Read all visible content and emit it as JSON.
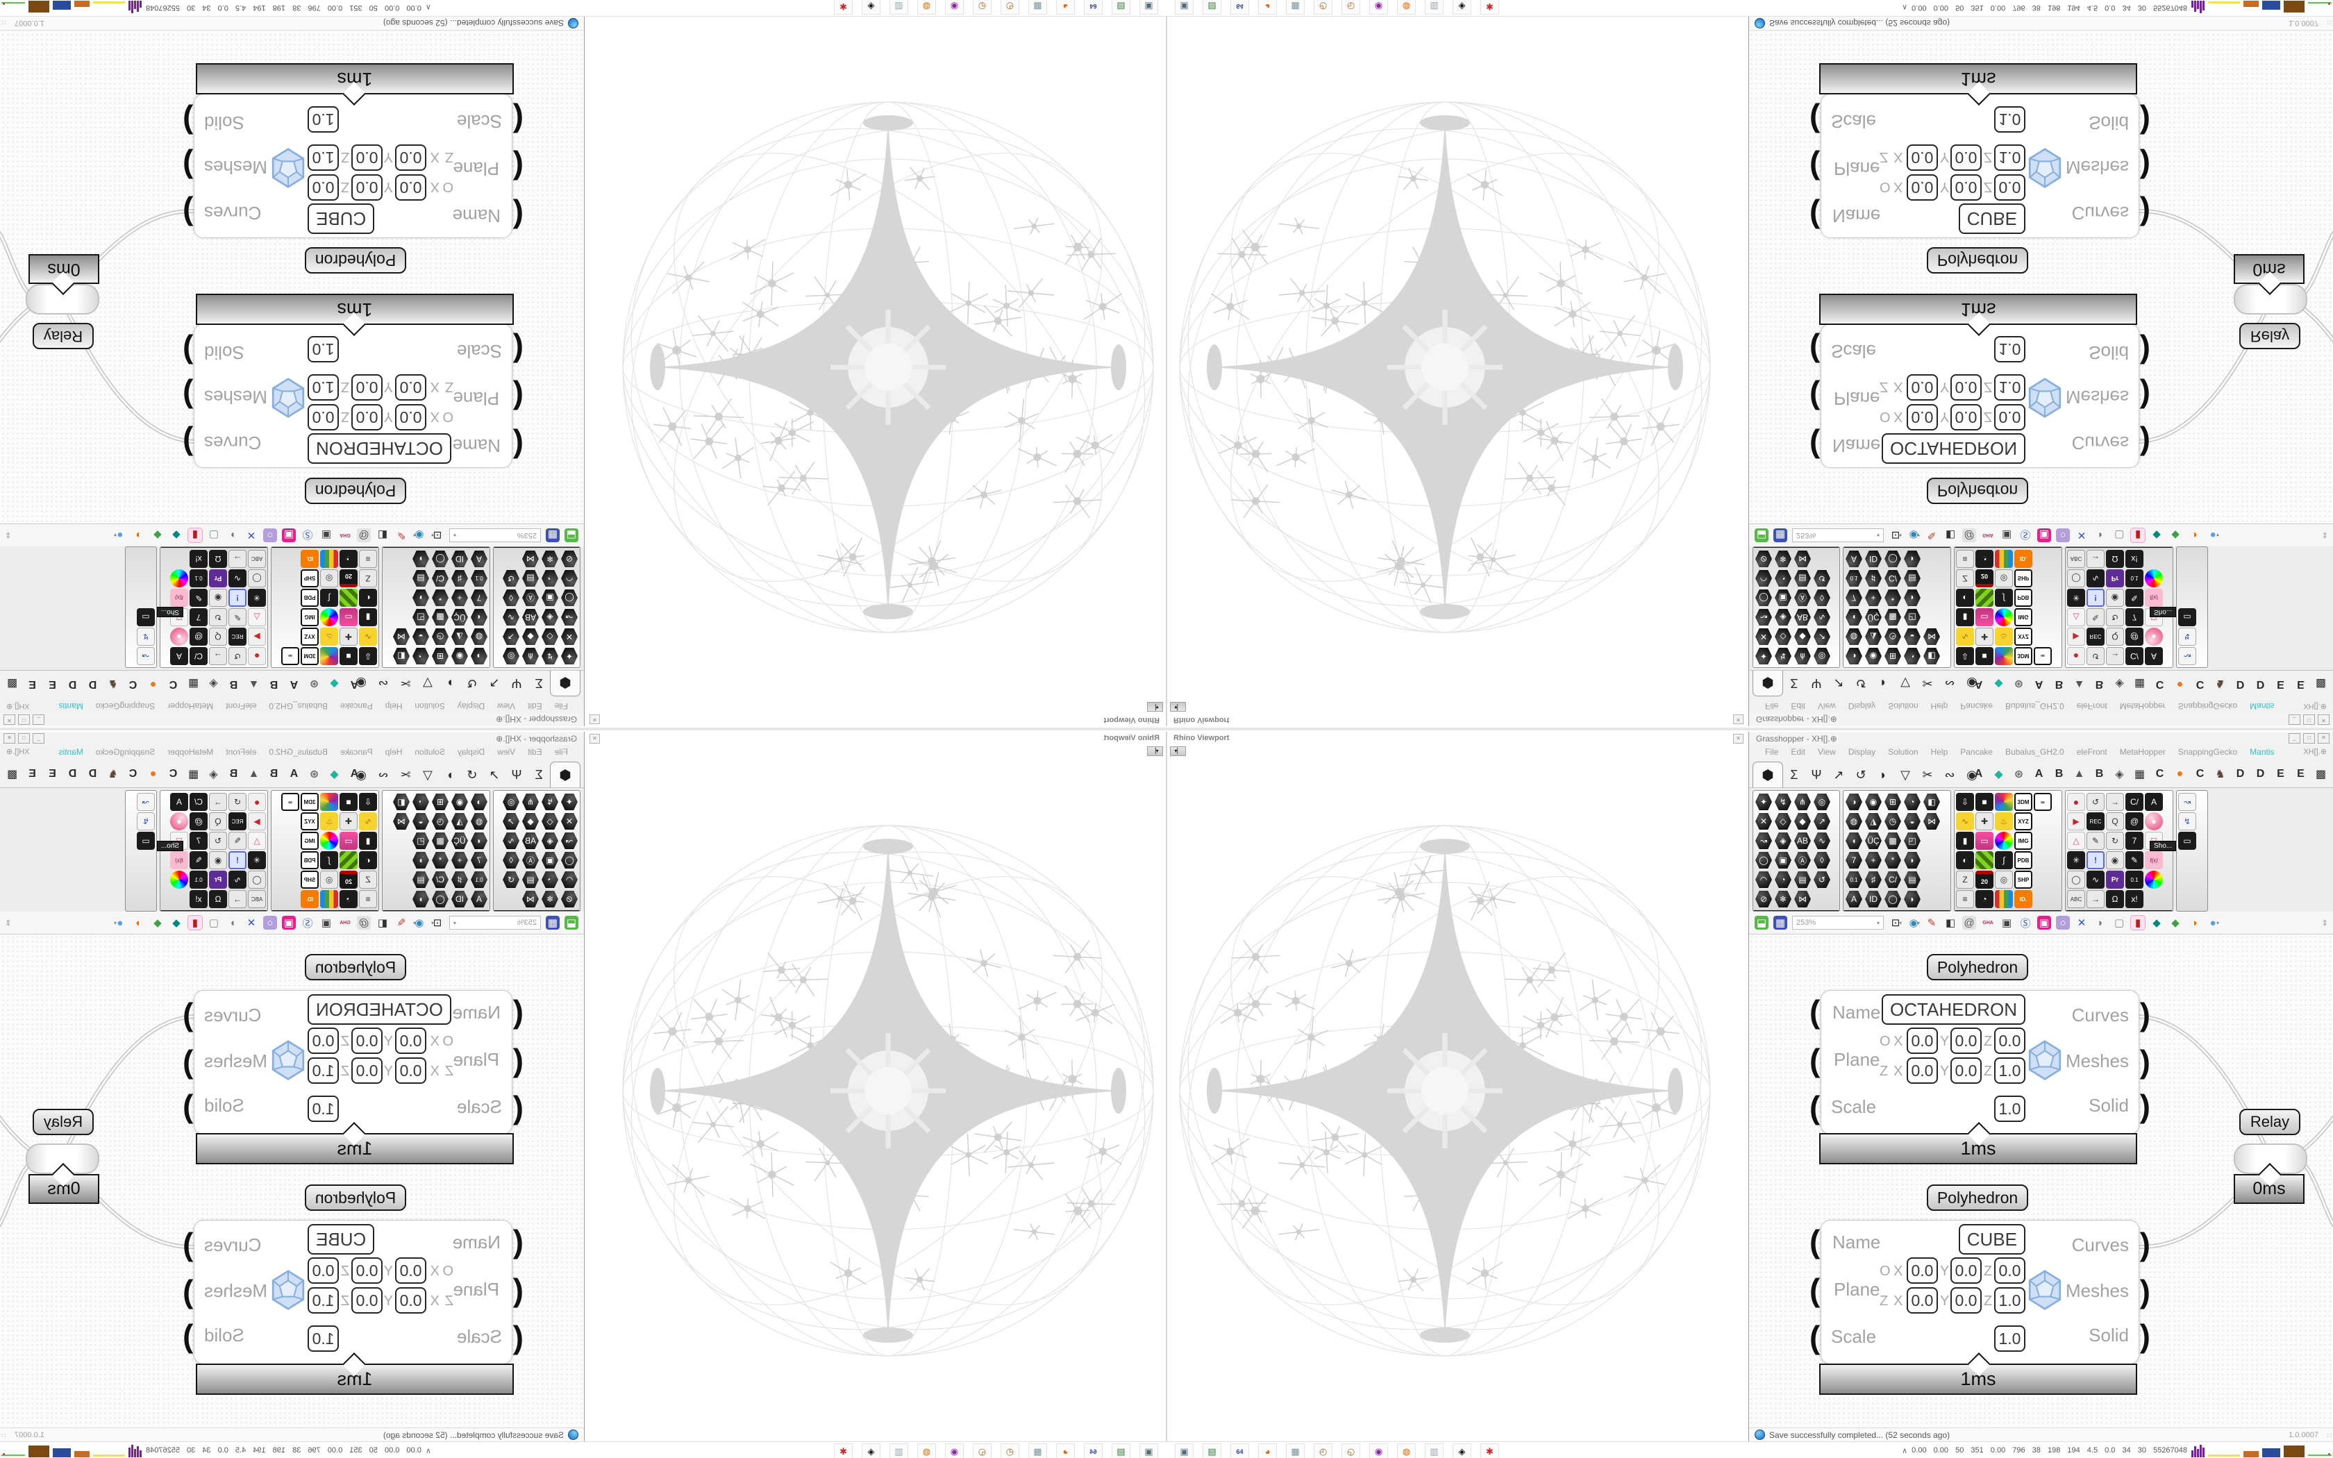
{
  "window": {
    "title": "Grasshopper - XH[].⊕",
    "menu": [
      "File",
      "Edit",
      "View",
      "Display",
      "Solution",
      "Help",
      "Pancake",
      "Bubalus_GH2.0",
      "eleFront",
      "MetaHopper",
      "SnappingGecko",
      "Mantis"
    ],
    "menu_highlight": "Mantis",
    "menu_right": "XH[].⊕",
    "controls": [
      "_",
      "□",
      "✕"
    ]
  },
  "viewport": {
    "label": "Rhino Viewport",
    "close_glyph": "✕",
    "collapse_glyph": "▾▏"
  },
  "tabs": {
    "selected_glyph": "⬢",
    "main": [
      "Σ",
      "Ψ",
      "↗",
      "↺",
      "◗",
      "▽",
      "✂",
      "∾",
      "◉"
    ],
    "plugins": [
      {
        "g": "A"
      },
      {
        "g": "◆",
        "c": "#1db5a0"
      },
      {
        "g": "⊛",
        "c": "#6a6a6a"
      },
      {
        "g": "A"
      },
      {
        "g": "B"
      },
      {
        "g": "▲",
        "c": "#555555"
      },
      {
        "g": "B"
      },
      {
        "g": "◈",
        "c": "#444444"
      },
      {
        "g": "▦"
      },
      {
        "g": "C"
      },
      {
        "g": "●",
        "c": "#e87722"
      },
      {
        "g": "C"
      },
      {
        "g": "♞",
        "c": "#5b4334"
      },
      {
        "g": "D"
      },
      {
        "g": "D"
      },
      {
        "g": "E"
      },
      {
        "g": "E"
      },
      {
        "g": "▩"
      }
    ]
  },
  "palette": {
    "tooltip": "Sho...",
    "footer_plus": "+",
    "groups": [
      {
        "label": "Geometry",
        "width": 124,
        "kind": "hex",
        "icons": [
          [
            "✦",
            "h"
          ],
          [
            "↯",
            "h"
          ],
          [
            "⋔",
            "h"
          ],
          [
            "◎",
            "h"
          ],
          [
            "✕",
            "h"
          ],
          [
            "◇",
            "h"
          ],
          [
            "◆",
            "h"
          ],
          [
            "↗",
            "h"
          ],
          [
            "↝",
            "h"
          ],
          [
            "◈",
            "h"
          ],
          [
            "AB",
            "h"
          ],
          [
            "∿",
            "h"
          ],
          [
            "◯",
            "h"
          ],
          [
            "▣",
            "h"
          ],
          [
            "Ⓐ",
            "h"
          ],
          [
            "◊",
            "h"
          ],
          [
            "◠",
            "h"
          ],
          [
            "◔",
            "h"
          ],
          [
            "▤",
            "h"
          ],
          [
            "↺",
            "h"
          ],
          [
            "⊘",
            "h"
          ],
          [
            "❄",
            "h"
          ],
          [
            "⋈",
            "h"
          ],
          [
            "",
            "x"
          ]
        ]
      },
      {
        "label": "Primitive",
        "width": 154,
        "kind": "hex",
        "icons": [
          [
            "◑",
            "h"
          ],
          [
            "◉",
            "h"
          ],
          [
            "⊞",
            "h"
          ],
          [
            "◔",
            "h"
          ],
          [
            "◧",
            "h"
          ],
          [
            "◍",
            "h"
          ],
          [
            "◮",
            "h"
          ],
          [
            "◷",
            "h"
          ],
          [
            "◒",
            "h"
          ],
          [
            "⋈",
            "h"
          ],
          [
            "◖",
            "h"
          ],
          [
            "ÜÇ",
            "h"
          ],
          [
            "▩",
            "h"
          ],
          [
            "◰",
            "h"
          ],
          [
            "",
            "x"
          ],
          [
            "7",
            "h"
          ],
          [
            "+",
            "h"
          ],
          [
            "*",
            "h"
          ],
          [
            "◗",
            "h"
          ],
          [
            "",
            "x"
          ],
          [
            "0.1",
            "h"
          ],
          [
            "♯",
            "h"
          ],
          [
            "C/",
            "h"
          ],
          [
            "▤",
            "h"
          ],
          [
            "",
            "x"
          ],
          [
            "A",
            "h"
          ],
          [
            "ID",
            "h"
          ],
          [
            "◯",
            "h"
          ],
          [
            "◗",
            "h"
          ],
          [
            "",
            "x"
          ]
        ]
      },
      {
        "label": "Input",
        "width": 154,
        "kind": "sq",
        "icons": [
          [
            "⇩",
            "d"
          ],
          [
            "■",
            "d"
          ],
          [
            "⊕",
            "w2"
          ],
          [
            "3DM",
            "t"
          ],
          [
            "∞",
            "t"
          ],
          [
            "∿",
            "y"
          ],
          [
            "✚",
            "l"
          ],
          [
            "♨",
            "y"
          ],
          [
            "XYZ",
            "t"
          ],
          [
            "",
            "x"
          ],
          [
            "▮",
            "d"
          ],
          [
            "▭",
            "p"
          ],
          [
            "●",
            "w"
          ],
          [
            "IMG",
            "t"
          ],
          [
            "",
            "x"
          ],
          [
            "◐",
            "d"
          ],
          [
            "▦",
            "g"
          ],
          [
            "∫",
            "d"
          ],
          [
            "PDB",
            "t"
          ],
          [
            "",
            "x"
          ],
          [
            "Z",
            "l"
          ],
          [
            "20",
            "k"
          ],
          [
            "◎",
            "l"
          ],
          [
            "SHP",
            "t"
          ],
          [
            "",
            "x"
          ],
          [
            "≡",
            "l"
          ],
          [
            "◔",
            "d"
          ],
          [
            "▥",
            "bars"
          ],
          [
            "ID.",
            "o"
          ],
          [
            "",
            "x"
          ]
        ]
      },
      {
        "label": "Util",
        "width": 154,
        "kind": "sq",
        "icons": [
          [
            "●",
            "c"
          ],
          [
            "↺",
            "l"
          ],
          [
            "→",
            "l"
          ],
          [
            "C/",
            "d"
          ],
          [
            "A",
            "d"
          ],
          [
            "▶",
            "r"
          ],
          [
            "REC",
            "d"
          ],
          [
            "Q",
            "l"
          ],
          [
            "@",
            "d"
          ],
          [
            "●",
            "p2"
          ],
          [
            "△",
            "p3"
          ],
          [
            "✎",
            "l"
          ],
          [
            "↻",
            "l"
          ],
          [
            "7",
            "d"
          ],
          [
            "▽",
            "p3"
          ],
          [
            "✳",
            "d"
          ],
          [
            "!",
            "b"
          ],
          [
            "◉",
            "l"
          ],
          [
            "✎",
            "d"
          ],
          [
            "f(x)",
            "p4"
          ],
          [
            "◯",
            "l"
          ],
          [
            "∿",
            "d"
          ],
          [
            "Pr",
            "u"
          ],
          [
            "0.1",
            "d"
          ],
          [
            "❂",
            "w"
          ],
          [
            "ABC",
            "l"
          ],
          [
            "→",
            "l"
          ],
          [
            "Ω",
            "d"
          ],
          [
            "x!",
            "d"
          ],
          [
            "",
            "x"
          ]
        ]
      },
      {
        "label": "",
        "width": 44,
        "kind": "sq",
        "icons": [
          [
            "↝",
            "bl"
          ],
          [
            "↯",
            "bl"
          ],
          [
            "▭",
            "d"
          ]
        ]
      }
    ]
  },
  "toolbar": {
    "zoom_level": "253%",
    "dropdown_glyph": "▾",
    "icons_a": [
      {
        "name": "open-file-icon",
        "g": "⬓",
        "c": "#fff",
        "bg": "#57b847"
      },
      {
        "name": "save-file-icon",
        "g": "▦",
        "c": "#fff",
        "bg": "#3f51b5"
      }
    ],
    "icons_b": [
      {
        "name": "zoom-extents-icon",
        "g": "⊡",
        "c": "#222",
        "dd": true
      },
      {
        "name": "preview-eye-icon",
        "g": "◉",
        "c": "#2e86c1",
        "dd": true
      },
      {
        "name": "sketch-pen-icon",
        "g": "✎",
        "c": "#c0392b"
      },
      {
        "name": "gate-icon",
        "g": "◧",
        "c": "#333"
      },
      {
        "name": "at-chip-icon",
        "g": "@",
        "c": "#555",
        "bg": "#e2e2e2"
      },
      {
        "name": "gha-icon",
        "g": "GHA",
        "c": "#b03050",
        "small": true
      },
      {
        "name": "notes-window-icon",
        "g": "▣",
        "c": "#444"
      },
      {
        "name": "search-loupe-icon",
        "g": "Ⓢ",
        "c": "#2e60c1"
      },
      {
        "name": "pink-box-icon",
        "g": "▣",
        "c": "#fff",
        "bg": "#e91e8c"
      },
      {
        "name": "lightbulb-icon",
        "g": "○",
        "c": "#fff",
        "bg": "#b39ddb"
      },
      {
        "name": "crossing-wires-icon",
        "g": "✕",
        "c": "#3355bb"
      },
      {
        "name": "preview-off-icon",
        "g": "◗",
        "c": "#777"
      },
      {
        "name": "preview-wire-icon",
        "g": "▢",
        "c": "#888"
      },
      {
        "name": "preview-shaded-icon",
        "g": "▮",
        "c": "#b71c1c",
        "hl": true
      },
      {
        "name": "gem-teal-icon",
        "g": "◆",
        "c": "#00897b"
      },
      {
        "name": "gem-green-icon",
        "g": "◆",
        "c": "#43a047"
      },
      {
        "name": "ball-orange-icon",
        "g": "◑",
        "c": "#ef6c00"
      },
      {
        "name": "ball-blue-icon",
        "g": "●",
        "c": "#5c9ded",
        "dd": true
      }
    ],
    "end_glyph": "⇕"
  },
  "axis": {
    "x": "X",
    "y": "Y",
    "z": "Z"
  },
  "ports": {
    "in": "(",
    "out": ")"
  },
  "canvas": {
    "components": [
      {
        "title": "Polyhedron",
        "name_value": "OCTAHEDRON",
        "inputs": [
          "Name",
          "Plane",
          "Scale"
        ],
        "outputs": [
          "Curves",
          "Meshes",
          "Solid"
        ],
        "plane_rows": [
          {
            "lead": "O",
            "x": "0.0",
            "y": "0.0",
            "z": "0.0"
          },
          {
            "lead": "Z",
            "x": "0.0",
            "y": "0.0",
            "z": "1.0"
          }
        ],
        "scale": "1.0",
        "time": "1ms"
      },
      {
        "title": "Polyhedron",
        "name_value": "CUBE",
        "inputs": [
          "Name",
          "Plane",
          "Scale"
        ],
        "outputs": [
          "Curves",
          "Meshes",
          "Solid"
        ],
        "plane_rows": [
          {
            "lead": "O",
            "x": "0.0",
            "y": "0.0",
            "z": "0.0"
          },
          {
            "lead": "Z",
            "x": "0.0",
            "y": "0.0",
            "z": "1.0"
          }
        ],
        "scale": "1.0",
        "time": "1ms"
      }
    ],
    "relay": {
      "label": "Relay",
      "time": "0ms"
    }
  },
  "statusbar": {
    "message": "Save successfully completed... (52 seconds ago)",
    "version": "1.0.0007",
    "grip": "∷"
  },
  "taskbar": {
    "icons": [
      {
        "name": "system-monitor-icon",
        "g": "▣",
        "c": "#546e7a"
      },
      {
        "name": "console-icon",
        "g": "▤",
        "c": "#2e7d32"
      },
      {
        "name": "floppy-64-icon",
        "g": "64",
        "c": "#303f9f"
      },
      {
        "name": "firefox-icon",
        "g": "◕",
        "c": "#e66000"
      },
      {
        "name": "calculator-icon",
        "g": "▦",
        "c": "#78909c"
      },
      {
        "name": "paint-icon-1",
        "g": "◴",
        "c": "#b5651d"
      },
      {
        "name": "paint-icon-2",
        "g": "◵",
        "c": "#b5651d"
      },
      {
        "name": "media-icon",
        "g": "◉",
        "c": "#8e24aa"
      },
      {
        "name": "blender-icon",
        "g": "◍",
        "c": "#ef6c00"
      },
      {
        "name": "printer-icon",
        "g": "▥",
        "c": "#90a4ae"
      },
      {
        "name": "cat-app-icon",
        "g": "◈",
        "c": "#111111"
      },
      {
        "name": "red-gear-icon",
        "g": "✱",
        "c": "#c62828"
      }
    ],
    "tray_chevron": "∧",
    "tray_values": "0.00 0.00 50 351 0.00 796 38 198 194 4.5 0.0 34 30 55267048"
  }
}
